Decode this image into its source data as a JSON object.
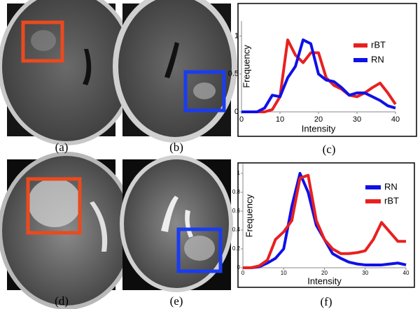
{
  "panels": [
    "(a)",
    "(b)",
    "(c)",
    "(d)",
    "(e)",
    "(f)"
  ],
  "chart_data": [
    {
      "type": "line",
      "x_label": "Intensity",
      "y_label": "Frequency",
      "x": [
        0,
        2,
        4,
        6,
        8,
        10,
        12,
        14,
        16,
        18,
        20,
        22,
        24,
        26,
        28,
        30,
        32,
        34,
        36,
        38,
        40
      ],
      "series": [
        {
          "name": "rBT",
          "color": "#e82020",
          "values": [
            0,
            0,
            0,
            0,
            0.03,
            0.2,
            0.95,
            0.75,
            0.65,
            0.78,
            0.78,
            0.45,
            0.35,
            0.3,
            0.22,
            0.2,
            0.25,
            0.32,
            0.38,
            0.25,
            0.1
          ]
        },
        {
          "name": "RN",
          "color": "#1010e8",
          "values": [
            0,
            0,
            0,
            0.05,
            0.22,
            0.2,
            0.45,
            0.6,
            0.95,
            0.9,
            0.5,
            0.42,
            0.4,
            0.32,
            0.22,
            0.25,
            0.25,
            0.2,
            0.15,
            0.08,
            0.05
          ]
        }
      ],
      "xlim": [
        0,
        40
      ],
      "xticks": [
        0,
        10,
        20,
        30,
        40
      ],
      "ylim": [
        0,
        1.2
      ],
      "yticks": [
        0,
        0.5,
        1
      ],
      "legend": "upper right"
    },
    {
      "type": "line",
      "x_label": "Intensity",
      "y_label": "Frequency",
      "x": [
        0,
        2,
        4,
        6,
        8,
        10,
        12,
        14,
        16,
        18,
        20,
        22,
        24,
        26,
        28,
        30,
        32,
        34,
        36,
        38,
        40
      ],
      "series": [
        {
          "name": "RN",
          "color": "#1010e8",
          "values": [
            0,
            0,
            0.01,
            0.05,
            0.1,
            0.2,
            0.65,
            1.0,
            0.8,
            0.45,
            0.3,
            0.15,
            0.1,
            0.06,
            0.04,
            0.03,
            0.03,
            0.03,
            0.04,
            0.05,
            0.03
          ]
        },
        {
          "name": "rBT",
          "color": "#e82020",
          "values": [
            0,
            0,
            0.02,
            0.08,
            0.3,
            0.38,
            0.5,
            0.95,
            0.98,
            0.5,
            0.3,
            0.2,
            0.15,
            0.15,
            0.16,
            0.18,
            0.3,
            0.48,
            0.38,
            0.28,
            0.28
          ]
        }
      ],
      "xlim": [
        0,
        40
      ],
      "xticks": [
        0,
        10,
        20,
        30,
        40
      ],
      "ylim": [
        0,
        1.1
      ],
      "yticks": [
        0,
        0.2,
        0.4,
        0.6,
        0.8,
        1
      ],
      "legend": "upper right"
    }
  ]
}
